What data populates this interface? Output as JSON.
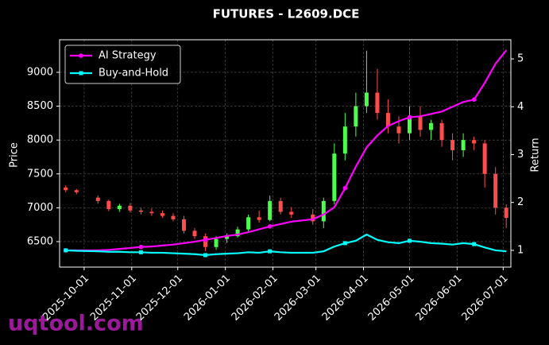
{
  "chart_data": {
    "type": "candlestick",
    "title": "FUTURES - L2609.DCE",
    "ylabel": "Price",
    "y2label": "Return",
    "watermark": "uqtool.com",
    "x": [
      "2025-09-19",
      "2025-09-26",
      "2025-10-10",
      "2025-10-17",
      "2025-10-24",
      "2025-10-31",
      "2025-11-07",
      "2025-11-14",
      "2025-11-21",
      "2025-11-28",
      "2025-12-05",
      "2025-12-12",
      "2025-12-19",
      "2025-12-26",
      "2026-01-02",
      "2026-01-09",
      "2026-01-16",
      "2026-01-23",
      "2026-01-30",
      "2026-02-06",
      "2026-02-13",
      "2026-02-27",
      "2026-03-06",
      "2026-03-13",
      "2026-03-20",
      "2026-03-27",
      "2026-04-03",
      "2026-04-10",
      "2026-04-17",
      "2026-04-24",
      "2026-05-01",
      "2026-05-08",
      "2026-05-15",
      "2026-05-22",
      "2026-05-29",
      "2026-06-05",
      "2026-06-12",
      "2026-06-19",
      "2026-06-26",
      "2026-07-03"
    ],
    "open": [
      7300,
      7260,
      7150,
      7100,
      6980,
      7030,
      6960,
      6940,
      6920,
      6880,
      6830,
      6660,
      6580,
      6420,
      6540,
      6580,
      6680,
      6860,
      6820,
      7100,
      6940,
      6900,
      6800,
      7100,
      7800,
      8200,
      8500,
      8700,
      8400,
      8200,
      8100,
      8350,
      8150,
      8250,
      8000,
      7850,
      8000,
      7950,
      7500,
      7000
    ],
    "high": [
      7330,
      7280,
      7180,
      7120,
      7060,
      7070,
      7000,
      6990,
      6960,
      6920,
      6880,
      6700,
      6620,
      6580,
      6620,
      6720,
      6900,
      6960,
      7180,
      7150,
      7010,
      6980,
      7150,
      7950,
      8400,
      8700,
      9320,
      9050,
      8600,
      8350,
      8500,
      8500,
      8300,
      8300,
      8100,
      8100,
      8050,
      8000,
      7600,
      7050
    ],
    "low": [
      7230,
      7200,
      7060,
      6950,
      6940,
      6930,
      6900,
      6880,
      6850,
      6800,
      6620,
      6540,
      6360,
      6380,
      6480,
      6560,
      6640,
      6780,
      6800,
      6900,
      6850,
      6750,
      6700,
      7050,
      7700,
      8050,
      8400,
      8300,
      8100,
      7950,
      8000,
      8050,
      8000,
      7900,
      7700,
      7750,
      7850,
      7300,
      6900,
      6700
    ],
    "close": [
      7260,
      7230,
      7100,
      6980,
      7030,
      6960,
      6940,
      6920,
      6880,
      6830,
      6660,
      6580,
      6420,
      6540,
      6580,
      6680,
      6860,
      6820,
      7100,
      6940,
      6900,
      6800,
      7100,
      7800,
      8200,
      8500,
      8700,
      8400,
      8200,
      8100,
      8350,
      8150,
      8250,
      8000,
      7850,
      8000,
      7950,
      7500,
      7000,
      6850
    ],
    "up_color": "#4cff4c",
    "down_color": "#ff4c4c",
    "series": [
      {
        "name": "AI Strategy",
        "color": "#ff00ff",
        "marker": "circle",
        "axis": "y2",
        "values": [
          1.0,
          1.0,
          1.0,
          1.01,
          1.03,
          1.05,
          1.07,
          1.08,
          1.1,
          1.12,
          1.15,
          1.18,
          1.22,
          1.26,
          1.3,
          1.33,
          1.38,
          1.44,
          1.5,
          1.55,
          1.6,
          1.65,
          1.75,
          1.9,
          2.3,
          2.75,
          3.15,
          3.4,
          3.6,
          3.7,
          3.78,
          3.8,
          3.85,
          3.9,
          4.0,
          4.1,
          4.15,
          4.5,
          4.9,
          5.18
        ]
      },
      {
        "name": "Buy-and-Hold",
        "color": "#00ffff",
        "marker": "square",
        "axis": "y2",
        "values": [
          1.0,
          0.99,
          0.98,
          0.97,
          0.97,
          0.96,
          0.96,
          0.95,
          0.95,
          0.94,
          0.93,
          0.92,
          0.9,
          0.92,
          0.93,
          0.94,
          0.96,
          0.95,
          0.98,
          0.96,
          0.95,
          0.95,
          0.98,
          1.08,
          1.15,
          1.2,
          1.33,
          1.22,
          1.17,
          1.15,
          1.2,
          1.18,
          1.15,
          1.14,
          1.12,
          1.15,
          1.13,
          1.06,
          1.0,
          0.98
        ]
      }
    ],
    "xlim": [
      "2025-09-15",
      "2026-07-06"
    ],
    "xticks": [
      "2025-10-01",
      "2025-11-01",
      "2025-12-01",
      "2026-01-01",
      "2026-02-01",
      "2026-03-01",
      "2026-04-01",
      "2026-05-01",
      "2026-06-01",
      "2026-07-01"
    ],
    "ylim": [
      6124,
      9481
    ],
    "yticks": [
      6500,
      7000,
      7500,
      8000,
      8500,
      9000
    ],
    "y2lim": [
      0.65,
      5.4
    ],
    "y2ticks": [
      1,
      2,
      3,
      4,
      5
    ],
    "grid": true,
    "legend": "upper left"
  }
}
